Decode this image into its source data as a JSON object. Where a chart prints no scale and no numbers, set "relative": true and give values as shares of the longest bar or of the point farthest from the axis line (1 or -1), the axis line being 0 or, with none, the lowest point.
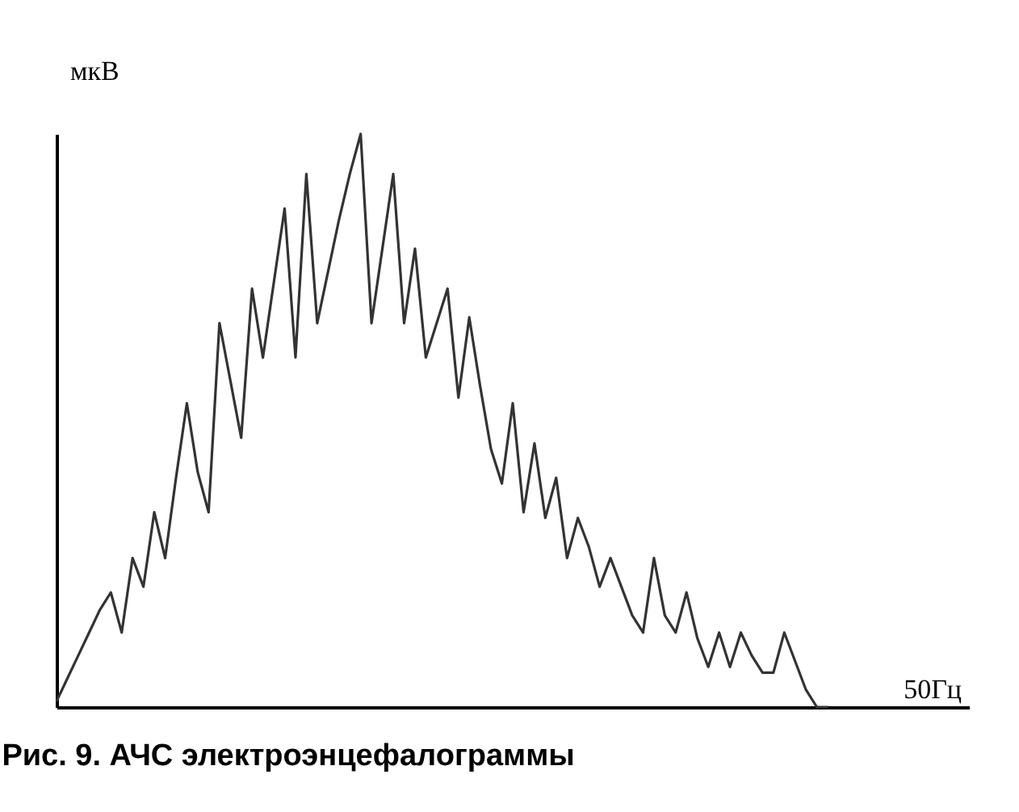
{
  "chart_data": {
    "type": "line",
    "title": "Рис. 9. АЧС электроэнцефалограммы",
    "xlabel": "50Гц",
    "ylabel": "мкВ",
    "relative": true,
    "grid": false,
    "legend": false,
    "marker": "none",
    "line_style": "solid",
    "categories": [
      null,
      null,
      null,
      null,
      null,
      null,
      null,
      null,
      null,
      null,
      null,
      null,
      null,
      null,
      null,
      null,
      null,
      null,
      null,
      null,
      null,
      null,
      null,
      null,
      null,
      null,
      null,
      null,
      null,
      null,
      null,
      null,
      null,
      null,
      null,
      null,
      null,
      null,
      null,
      null,
      null,
      null,
      null,
      null,
      null,
      null,
      null,
      null,
      null,
      null,
      null,
      null,
      null,
      null,
      null,
      null,
      null,
      null,
      null,
      null,
      null,
      null,
      null,
      null,
      null,
      null,
      null,
      null,
      null,
      null,
      null,
      null,
      null,
      null,
      null,
      null,
      null,
      null,
      null,
      null,
      null,
      null,
      null,
      null,
      null
    ],
    "series": [
      {
        "color": "#333333",
        "values": [
          0.01,
          0.05,
          0.09,
          0.13,
          0.17,
          0.2,
          0.13,
          0.26,
          0.21,
          0.34,
          0.26,
          0.4,
          0.53,
          0.41,
          0.34,
          0.67,
          0.57,
          0.47,
          0.73,
          0.61,
          0.74,
          0.87,
          0.61,
          0.93,
          0.67,
          0.76,
          0.85,
          0.93,
          1.0,
          0.67,
          0.8,
          0.93,
          0.67,
          0.8,
          0.61,
          0.67,
          0.73,
          0.54,
          0.68,
          0.56,
          0.45,
          0.39,
          0.53,
          0.34,
          0.46,
          0.33,
          0.4,
          0.26,
          0.33,
          0.28,
          0.21,
          0.26,
          0.21,
          0.16,
          0.13,
          0.26,
          0.16,
          0.13,
          0.2,
          0.12,
          0.07,
          0.13,
          0.07,
          0.13,
          0.09,
          0.06,
          0.06,
          0.13,
          0.08,
          0.03,
          0.0,
          0.0,
          null,
          null,
          null,
          null,
          null,
          null,
          null,
          null,
          null,
          null,
          null,
          null,
          null
        ]
      }
    ]
  }
}
